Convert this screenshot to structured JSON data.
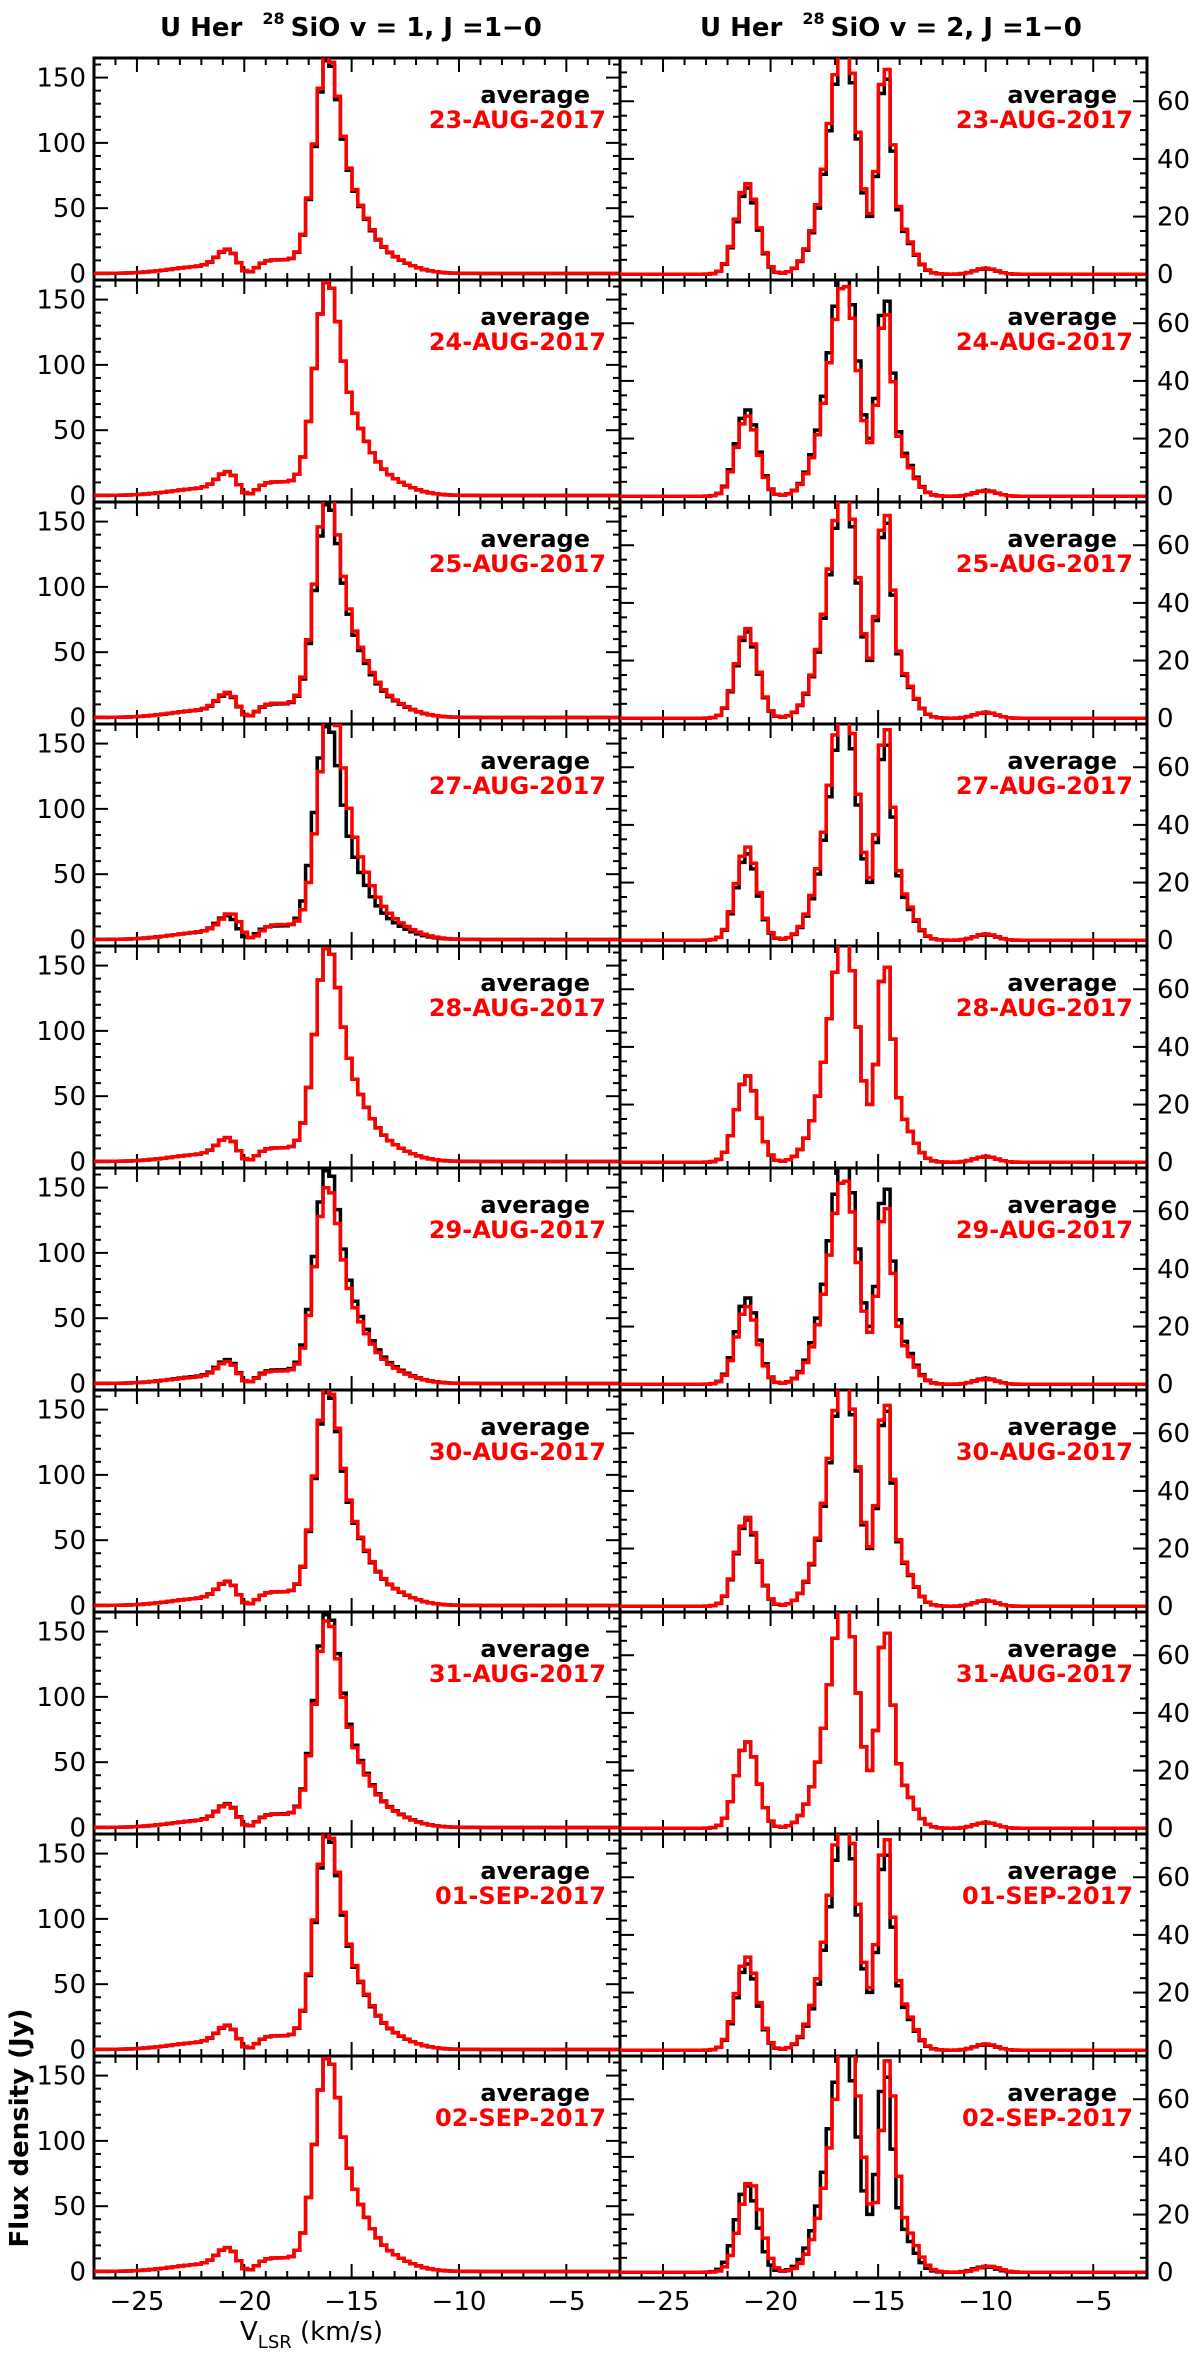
{
  "chart_data": {
    "type": "line",
    "step_style": "histogram",
    "grid": false,
    "legend_position": "top-right",
    "xlabel_main": "V",
    "xlabel_sub": "LSR",
    "xlabel_unit": " (km/s)",
    "ylabel": "Flux density (Jy)",
    "xlim": [
      -27,
      -2.5
    ],
    "x_ticks": [
      -25,
      -20,
      -15,
      -10,
      -5
    ],
    "x_tick_labels": [
      "−25",
      "−20",
      "−15",
      "−10",
      "−5"
    ],
    "series_colors": {
      "average": "#000000",
      "daily": "#ff0000"
    },
    "legend_average_label": "average",
    "columns": [
      {
        "source": "U Her",
        "isotope_sup": "28",
        "line_label": "SiO v = 1, J =1−0",
        "ylim": [
          -5,
          165
        ],
        "y_ticks": [
          0,
          50,
          100,
          150
        ],
        "y_tick_labels": [
          "0",
          "50",
          "100",
          "150"
        ],
        "y_axis_side": "left",
        "average_profile_components": [
          {
            "center": -20.6,
            "amp": 16,
            "sigma": 0.55
          },
          {
            "center": -18.5,
            "amp": 10,
            "sigma": 1.4
          },
          {
            "center": -16.2,
            "amp": 128,
            "sigma": 0.55
          },
          {
            "center": -15.3,
            "amp": 50,
            "sigma": 0.85
          },
          {
            "center": -14.0,
            "amp": 16,
            "sigma": 1.3
          },
          {
            "center": -22.0,
            "amp": 5,
            "sigma": 1.5
          },
          {
            "center": -20.0,
            "amp": -14,
            "sigma": 0.45
          }
        ]
      },
      {
        "source": "U Her",
        "isotope_sup": "28",
        "line_label": "SiO v = 2, J =1−0",
        "ylim": [
          -2,
          75
        ],
        "y_ticks": [
          0,
          20,
          40,
          60
        ],
        "y_tick_labels": [
          "0",
          "20",
          "40",
          "60"
        ],
        "y_axis_side": "right",
        "average_profile_components": [
          {
            "center": -21.1,
            "amp": 30,
            "sigma": 0.5
          },
          {
            "center": -16.5,
            "amp": 70,
            "sigma": 0.6
          },
          {
            "center": -17.4,
            "amp": 20,
            "sigma": 0.7
          },
          {
            "center": -14.7,
            "amp": 62,
            "sigma": 0.32
          },
          {
            "center": -14.0,
            "amp": 15,
            "sigma": 0.6
          },
          {
            "center": -10.0,
            "amp": 2,
            "sigma": 0.5
          }
        ]
      }
    ],
    "panels": [
      {
        "date": "23-AUG-2017",
        "scale": [
          1.02,
          1.05
        ],
        "shift": [
          0,
          0
        ]
      },
      {
        "date": "24-AUG-2017",
        "scale": [
          1.0,
          0.93
        ],
        "shift": [
          0,
          0
        ]
      },
      {
        "date": "25-AUG-2017",
        "scale": [
          1.05,
          1.04
        ],
        "shift": [
          0,
          0
        ]
      },
      {
        "date": "27-AUG-2017",
        "scale": [
          1.1,
          1.08
        ],
        "shift": [
          0.15,
          0
        ]
      },
      {
        "date": "28-AUG-2017",
        "scale": [
          1.0,
          1.0
        ],
        "shift": [
          0,
          0
        ]
      },
      {
        "date": "29-AUG-2017",
        "scale": [
          0.92,
          0.9
        ],
        "shift": [
          0,
          0
        ]
      },
      {
        "date": "30-AUG-2017",
        "scale": [
          1.02,
          1.03
        ],
        "shift": [
          0,
          0
        ]
      },
      {
        "date": "31-AUG-2017",
        "scale": [
          0.97,
          1.0
        ],
        "shift": [
          0,
          0
        ]
      },
      {
        "date": "01-SEP-2017",
        "scale": [
          1.02,
          1.08
        ],
        "shift": [
          0,
          0
        ]
      },
      {
        "date": "02-SEP-2017",
        "scale": [
          1.0,
          1.05
        ],
        "shift": [
          0,
          0.15
        ]
      }
    ]
  }
}
